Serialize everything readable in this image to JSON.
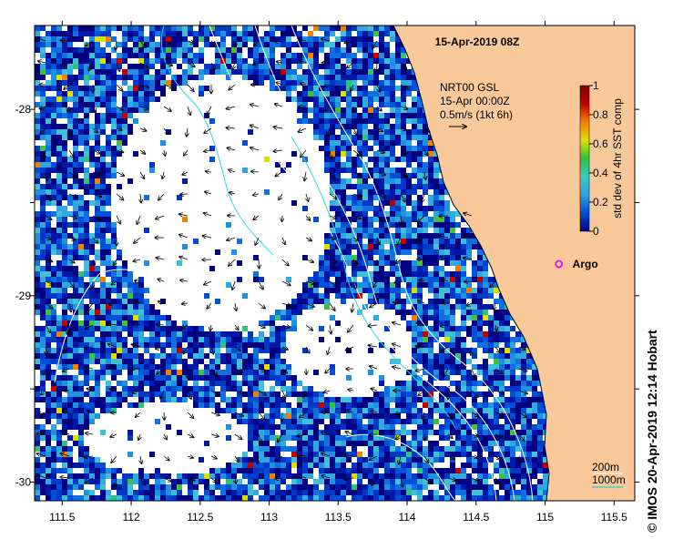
{
  "title": "15-Apr-2019 08Z",
  "product": {
    "line1": "NRT00 GSL",
    "line2": "15-Apr 00:00Z",
    "line3": "0.5m/s (1kt 6h)"
  },
  "colorbar": {
    "label": "std dev of 4hr SST comp",
    "ticks": [
      "0",
      "0.2",
      "0.4",
      "0.6",
      "0.8",
      "1"
    ],
    "stops": [
      "#000080",
      "#0050d0",
      "#30a0e0",
      "#40c8c0",
      "#30c040",
      "#e0e000",
      "#f08000",
      "#c00000",
      "#800000"
    ]
  },
  "argo": {
    "label": "Argo",
    "lon": 115.1,
    "lat": -28.83,
    "color": "#e020e0"
  },
  "bathymetry": {
    "label_200": "200m",
    "label_1000": "1000m",
    "color": "#00d0d0"
  },
  "axes": {
    "x_ticks": [
      "111.5",
      "112",
      "112.5",
      "113",
      "113.5",
      "114",
      "114.5",
      "115",
      "115.5"
    ],
    "y_ticks": [
      "-28",
      "-28.5",
      "-29",
      "-29.5",
      "-30"
    ],
    "y_tick_labels": [
      "-28",
      "",
      "-29",
      "",
      "-30"
    ],
    "lon_range": [
      111.3,
      115.65
    ],
    "lat_range": [
      -30.1,
      -27.55
    ]
  },
  "colors": {
    "land": "#f9c99a",
    "coast": "#000000"
  },
  "credit": "© IMOS 20-Apr-2019 12:14 Hobart"
}
